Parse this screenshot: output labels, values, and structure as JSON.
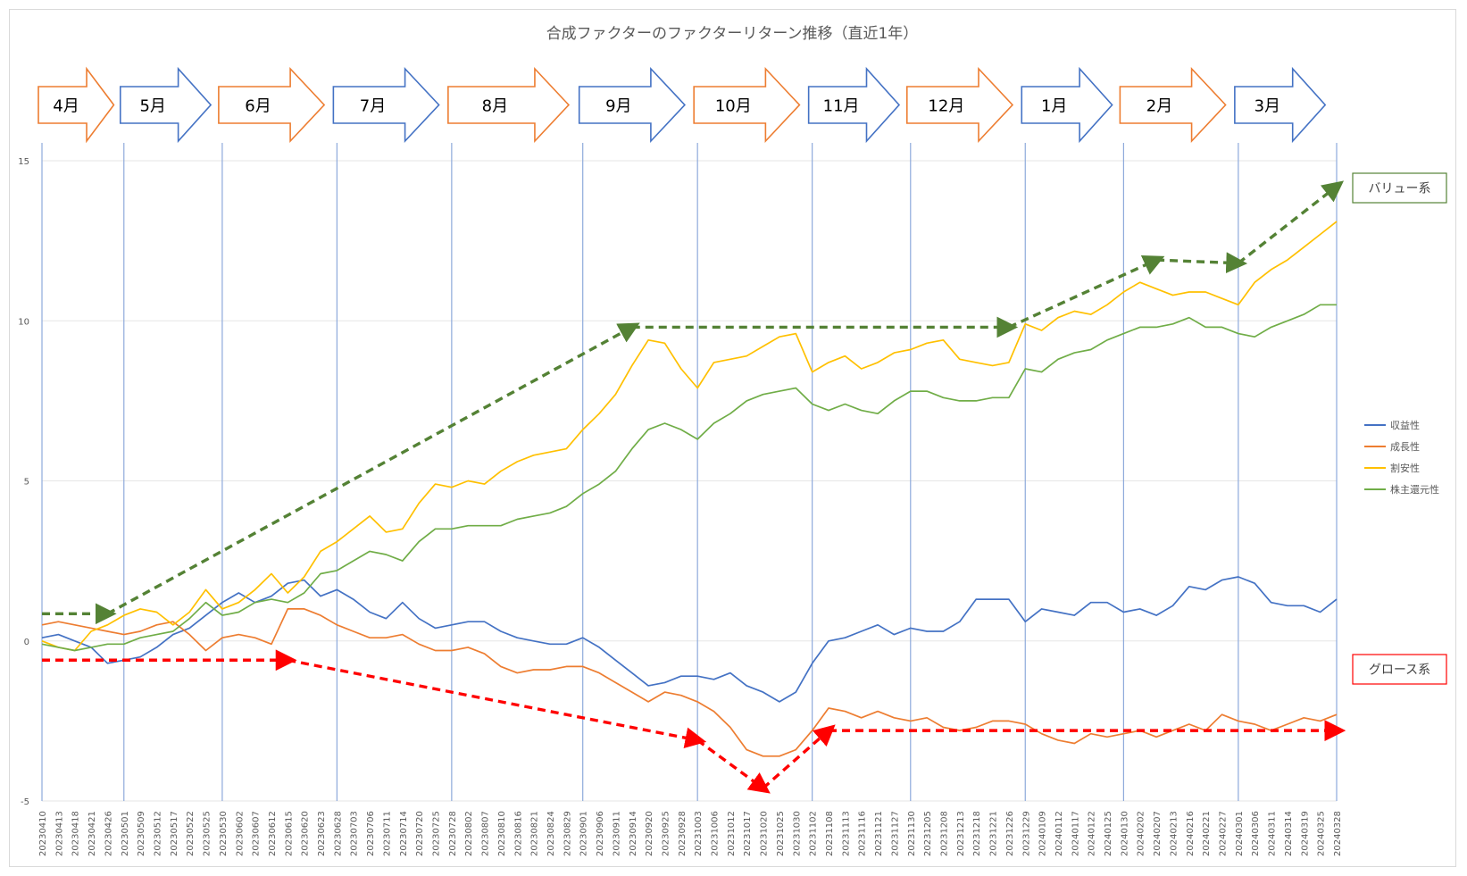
{
  "chart_data": {
    "type": "line",
    "title": "合成ファクターのファクターリターン推移（直近1年）",
    "y_ticks": [
      "15",
      "10",
      "5",
      "0",
      "-5"
    ],
    "ylim": [
      -5,
      15
    ],
    "x_labels": [
      "20230410",
      "20230413",
      "20230418",
      "20230421",
      "20230426",
      "20230501",
      "20230509",
      "20230512",
      "20230517",
      "20230522",
      "20230525",
      "20230530",
      "20230602",
      "20230607",
      "20230612",
      "20230615",
      "20230620",
      "20230623",
      "20230628",
      "20230703",
      "20230706",
      "20230711",
      "20230714",
      "20230720",
      "20230725",
      "20230728",
      "20230802",
      "20230807",
      "20230810",
      "20230816",
      "20230821",
      "20230824",
      "20230829",
      "20230901",
      "20230906",
      "20230911",
      "20230914",
      "20230920",
      "20230925",
      "20230928",
      "20231003",
      "20231006",
      "20231012",
      "20231017",
      "20231020",
      "20231025",
      "20231030",
      "20231102",
      "20231108",
      "20231113",
      "20231116",
      "20231121",
      "20231127",
      "20231130",
      "20231205",
      "20231208",
      "20231213",
      "20231218",
      "20231221",
      "20231226",
      "20231229",
      "20240109",
      "20240112",
      "20240117",
      "20240122",
      "20240125",
      "20240130",
      "20240202",
      "20240207",
      "20240213",
      "20240216",
      "20240221",
      "20240227",
      "20240301",
      "20240306",
      "20240311",
      "20240314",
      "20240319",
      "20240325",
      "20240328"
    ],
    "months": [
      {
        "label": "4月",
        "color": "#ed7d31"
      },
      {
        "label": "5月",
        "color": "#4472c4"
      },
      {
        "label": "6月",
        "color": "#ed7d31"
      },
      {
        "label": "7月",
        "color": "#4472c4"
      },
      {
        "label": "8月",
        "color": "#ed7d31"
      },
      {
        "label": "9月",
        "color": "#4472c4"
      },
      {
        "label": "10月",
        "color": "#ed7d31"
      },
      {
        "label": "11月",
        "color": "#4472c4"
      },
      {
        "label": "12月",
        "color": "#ed7d31"
      },
      {
        "label": "1月",
        "color": "#4472c4"
      },
      {
        "label": "2月",
        "color": "#ed7d31"
      },
      {
        "label": "3月",
        "color": "#4472c4"
      }
    ],
    "month_boundaries": [
      "20230410",
      "20230501",
      "20230530",
      "20230628",
      "20230728",
      "20230901",
      "20231003",
      "20231102",
      "20231130",
      "20231229",
      "20240130",
      "20240301",
      "20240328"
    ],
    "series": [
      {
        "name": "収益性",
        "color": "#4472c4",
        "values": [
          0.1,
          0.2,
          0,
          -0.2,
          -0.7,
          -0.6,
          -0.5,
          -0.2,
          0.2,
          0.4,
          0.8,
          1.2,
          1.5,
          1.2,
          1.4,
          1.8,
          1.9,
          1.4,
          1.6,
          1.3,
          0.9,
          0.7,
          1.2,
          0.7,
          0.4,
          0.5,
          0.6,
          0.6,
          0.3,
          0.1,
          0,
          -0.1,
          -0.1,
          0.1,
          -0.2,
          -0.6,
          -1,
          -1.4,
          -1.3,
          -1.1,
          -1.1,
          -1.2,
          -1,
          -1.4,
          -1.6,
          -1.9,
          -1.6,
          -0.7,
          0,
          0.1,
          0.3,
          0.5,
          0.2,
          0.4,
          0.3,
          0.3,
          0.6,
          1.3,
          1.3,
          1.3,
          0.6,
          1,
          0.9,
          0.8,
          1.2,
          1.2,
          0.9,
          1,
          0.8,
          1.1,
          1.7,
          1.6,
          1.9,
          2,
          1.8,
          1.2,
          1.1,
          1.1,
          0.9,
          1.3
        ]
      },
      {
        "name": "成長性",
        "color": "#ed7d31",
        "values": [
          0.5,
          0.6,
          0.5,
          0.4,
          0.3,
          0.2,
          0.3,
          0.5,
          0.6,
          0.2,
          -0.3,
          0.1,
          0.2,
          0.1,
          -0.1,
          1,
          1,
          0.8,
          0.5,
          0.3,
          0.1,
          0.1,
          0.2,
          -0.1,
          -0.3,
          -0.3,
          -0.2,
          -0.4,
          -0.8,
          -1,
          -0.9,
          -0.9,
          -0.8,
          -0.8,
          -1,
          -1.3,
          -1.6,
          -1.9,
          -1.6,
          -1.7,
          -1.9,
          -2.2,
          -2.7,
          -3.4,
          -3.6,
          -3.6,
          -3.4,
          -2.8,
          -2.1,
          -2.2,
          -2.4,
          -2.2,
          -2.4,
          -2.5,
          -2.4,
          -2.7,
          -2.8,
          -2.7,
          -2.5,
          -2.5,
          -2.6,
          -2.9,
          -3.1,
          -3.2,
          -2.9,
          -3,
          -2.9,
          -2.8,
          -3,
          -2.8,
          -2.6,
          -2.8,
          -2.3,
          -2.5,
          -2.6,
          -2.8,
          -2.6,
          -2.4,
          -2.5,
          -2.3
        ]
      },
      {
        "name": "割安性",
        "color": "#ffc000",
        "values": [
          0,
          -0.2,
          -0.3,
          0.3,
          0.5,
          0.8,
          1,
          0.9,
          0.5,
          0.9,
          1.6,
          1,
          1.2,
          1.6,
          2.1,
          1.5,
          2,
          2.8,
          3.1,
          3.5,
          3.9,
          3.4,
          3.5,
          4.3,
          4.9,
          4.8,
          5,
          4.9,
          5.3,
          5.6,
          5.8,
          5.9,
          6,
          6.6,
          7.1,
          7.7,
          8.6,
          9.4,
          9.3,
          8.5,
          7.9,
          8.7,
          8.8,
          8.9,
          9.2,
          9.5,
          9.6,
          8.4,
          8.7,
          8.9,
          8.5,
          8.7,
          9,
          9.1,
          9.3,
          9.4,
          8.8,
          8.7,
          8.6,
          8.7,
          9.9,
          9.7,
          10.1,
          10.3,
          10.2,
          10.5,
          10.9,
          11.2,
          11,
          10.8,
          10.9,
          10.9,
          10.7,
          10.5,
          11.2,
          11.6,
          11.9,
          12.3,
          12.7,
          13.1
        ]
      },
      {
        "name": "株主還元性",
        "color": "#70ad47",
        "values": [
          -0.1,
          -0.2,
          -0.3,
          -0.2,
          -0.1,
          -0.1,
          0.1,
          0.2,
          0.3,
          0.7,
          1.2,
          0.8,
          0.9,
          1.2,
          1.3,
          1.2,
          1.5,
          2.1,
          2.2,
          2.5,
          2.8,
          2.7,
          2.5,
          3.1,
          3.5,
          3.5,
          3.6,
          3.6,
          3.6,
          3.8,
          3.9,
          4,
          4.2,
          4.6,
          4.9,
          5.3,
          6,
          6.6,
          6.8,
          6.6,
          6.3,
          6.8,
          7.1,
          7.5,
          7.7,
          7.8,
          7.9,
          7.4,
          7.2,
          7.4,
          7.2,
          7.1,
          7.5,
          7.8,
          7.8,
          7.6,
          7.5,
          7.5,
          7.6,
          7.6,
          8.5,
          8.4,
          8.8,
          9,
          9.1,
          9.4,
          9.6,
          9.8,
          9.8,
          9.9,
          10.1,
          9.8,
          9.8,
          9.6,
          9.5,
          9.8,
          10,
          10.2,
          10.5,
          10.5
        ]
      }
    ],
    "legend_position": "right",
    "annotations": [
      {
        "label": "バリュー系",
        "color": "#548235",
        "points": [
          [
            "20230410",
            0.85
          ],
          [
            "20230426",
            0.85
          ],
          [
            "20230914",
            9.8
          ],
          [
            "20231226",
            9.8
          ],
          [
            "20240207",
            11.9
          ],
          [
            "20240301",
            11.8
          ],
          [
            "20240328",
            14.2
          ]
        ]
      },
      {
        "label": "グロース系",
        "color": "#ff0000",
        "points": [
          [
            "20230410",
            -0.6
          ],
          [
            "20230615",
            -0.6
          ],
          [
            "20231003",
            -3.1
          ],
          [
            "20231020",
            -4.6
          ],
          [
            "20231108",
            -2.8
          ],
          [
            "20240328",
            -2.8
          ]
        ]
      }
    ]
  }
}
